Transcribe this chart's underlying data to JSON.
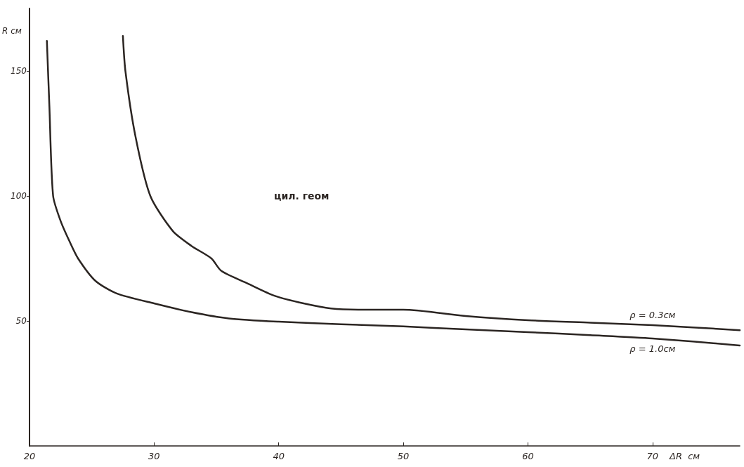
{
  "chart_data": {
    "type": "line",
    "xlabel": "ΔR  см",
    "ylabel": "R см",
    "annotations": [
      "цил. геом"
    ],
    "xlim": [
      20,
      77
    ],
    "xticks": [
      20,
      30,
      40,
      50,
      60,
      70
    ],
    "ylim": [
      0,
      175
    ],
    "yticks": [
      50,
      100,
      150
    ],
    "grid": false,
    "legend": false,
    "marker": "none",
    "line_style": "solid",
    "series": [
      {
        "name": "ρ = 0.3см",
        "color": "#2b2522",
        "x": [
          27.5,
          27.7,
          28.5,
          29.7,
          31.5,
          33,
          34.6,
          35.4,
          37.5,
          39.7,
          42,
          44.2,
          47,
          50,
          55,
          60,
          65,
          70,
          77
        ],
        "values": [
          164,
          150,
          124,
          100,
          86,
          80,
          75,
          70,
          65,
          60,
          57,
          55,
          54.5,
          54.5,
          52,
          50.3,
          49.3,
          48.3,
          46.3
        ]
      },
      {
        "name": "ρ = 1.0см",
        "color": "#2b2522",
        "x": [
          21.4,
          21.6,
          21.9,
          22.5,
          23.2,
          23.9,
          25.3,
          27,
          30,
          33,
          36,
          40,
          45,
          50,
          55,
          60,
          65,
          70,
          77
        ],
        "values": [
          162,
          136,
          100,
          90,
          82,
          75,
          66,
          61,
          57,
          53.5,
          51,
          49.7,
          48.7,
          47.8,
          46.6,
          45.5,
          44.3,
          43,
          40.2
        ]
      }
    ]
  }
}
